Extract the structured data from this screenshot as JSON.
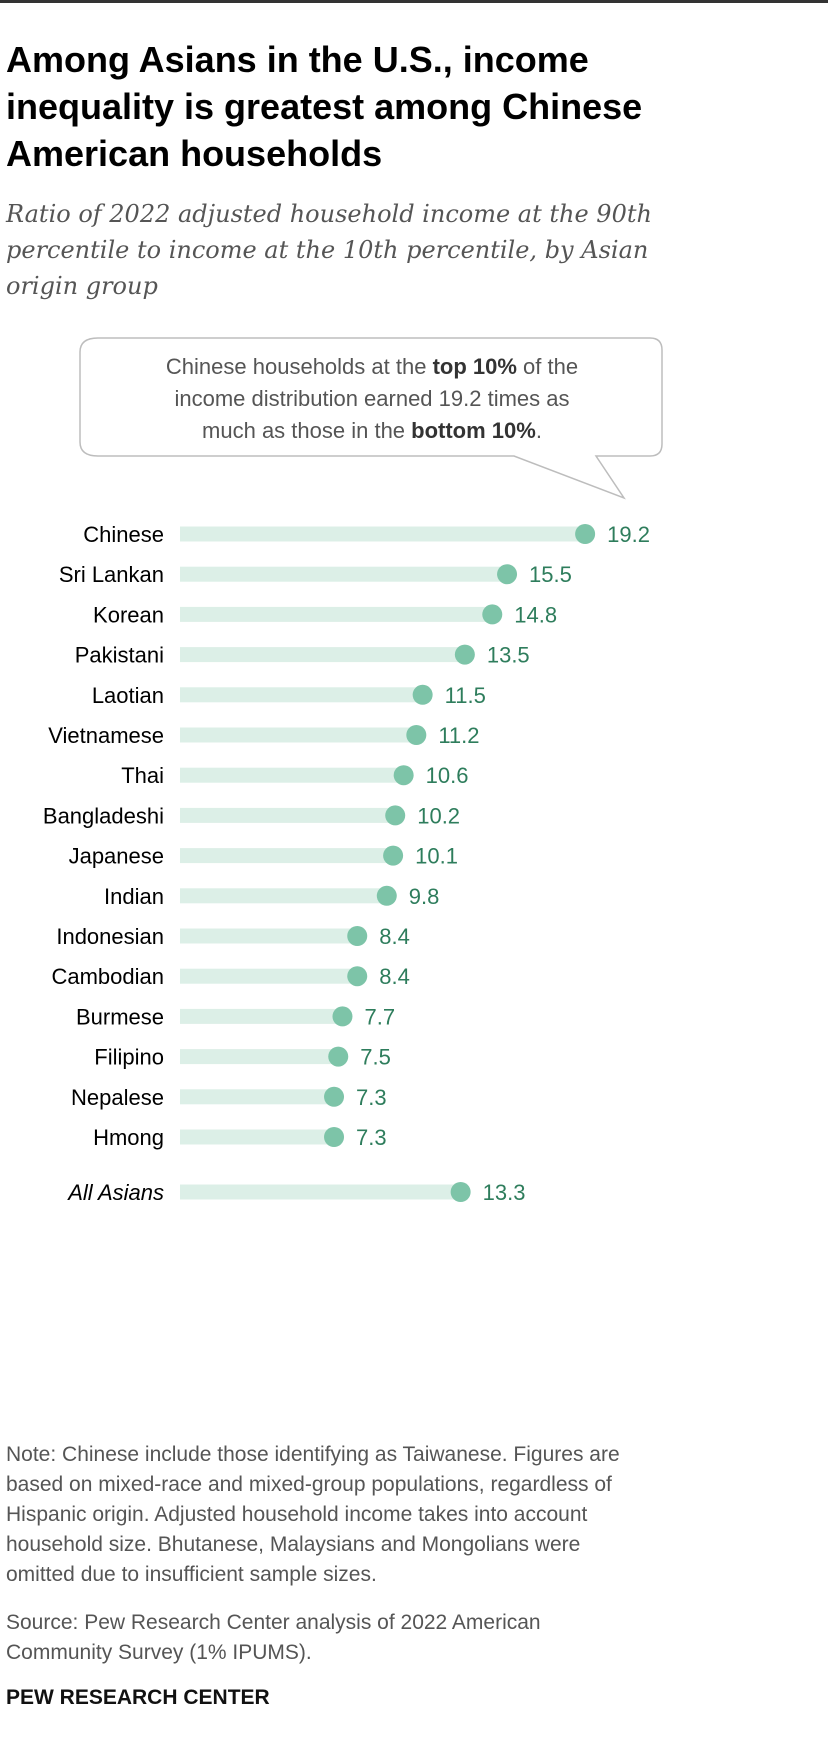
{
  "header": {
    "title_lines": [
      "Among Asians in the U.S., income",
      "inequality is greatest among Chinese",
      "American households"
    ],
    "subtitle_lines": [
      "Ratio of 2022 adjusted household income at the 90th",
      "percentile to income at the 10th percentile, by Asian",
      "origin group"
    ]
  },
  "callout": {
    "line1_pre": "Chinese households at the ",
    "line1_bold": "top 10%",
    "line1_post": " of the",
    "line2": "income distribution earned 19.2 times as",
    "line3_pre": "much as those in the ",
    "line3_bold": "bottom 10%",
    "line3_post": "."
  },
  "chart_data": {
    "type": "dot",
    "categories": [
      "Chinese",
      "Sri Lankan",
      "Korean",
      "Pakistani",
      "Laotian",
      "Vietnamese",
      "Thai",
      "Bangladeshi",
      "Japanese",
      "Indian",
      "Indonesian",
      "Cambodian",
      "Burmese",
      "Filipino",
      "Nepalese",
      "Hmong"
    ],
    "values": [
      19.2,
      15.5,
      14.8,
      13.5,
      11.5,
      11.2,
      10.6,
      10.2,
      10.1,
      9.8,
      8.4,
      8.4,
      7.7,
      7.5,
      7.3,
      7.3
    ],
    "value_labels": [
      "19.2",
      "15.5",
      "14.8",
      "13.5",
      "11.5",
      "11.2",
      "10.6",
      "10.2",
      "10.1",
      "9.8",
      "8.4",
      "8.4",
      "7.7",
      "7.5",
      "7.3",
      "7.3"
    ],
    "total": {
      "category": "All Asians",
      "value": 13.3,
      "label": "13.3"
    },
    "xlim": [
      0,
      20
    ],
    "grid": false,
    "colors": {
      "dot": "#7dc4a8",
      "track": "#dcefe7",
      "value_text": "#2e7d5c"
    }
  },
  "footer": {
    "note_lines": [
      "Note: Chinese include those identifying as Taiwanese. Figures are",
      "based on mixed-race and mixed-group populations, regardless of",
      "Hispanic origin. Adjusted household income takes into account",
      "household size. Bhutanese, Malaysians and Mongolians were",
      "omitted due to insufficient sample sizes."
    ],
    "source_lines": [
      "Source: Pew Research Center analysis of 2022 American",
      "Community Survey (1% IPUMS)."
    ],
    "brand": "PEW RESEARCH CENTER"
  }
}
